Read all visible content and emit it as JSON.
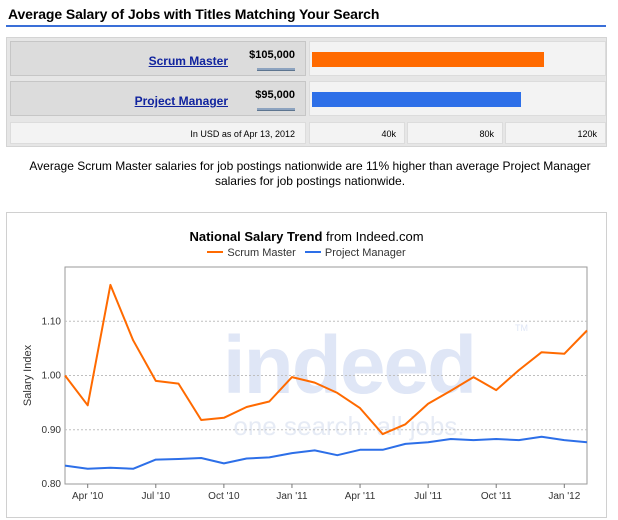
{
  "heading": "Average Salary of Jobs with Titles Matching Your Search",
  "salary_bars": {
    "jobs": [
      {
        "title": "Scrum Master",
        "amount_label": "$105,000",
        "value": 105000,
        "color": "#ff6a00"
      },
      {
        "title": "Project Manager",
        "amount_label": "$95,000",
        "value": 95000,
        "color": "#2d6fe8"
      }
    ],
    "footnote": "In USD as of Apr 13, 2012",
    "axis_ticks": [
      "40k",
      "80k",
      "120k"
    ],
    "axis_values": [
      40000,
      80000,
      120000
    ]
  },
  "summary": "Average Scrum Master salaries for job postings nationwide are 11% higher than average Project Manager salaries for job postings nationwide.",
  "trend": {
    "title_bold": "National Salary Trend",
    "title_rest": " from Indeed.com",
    "watermark_logo": "indeed",
    "watermark_tagline": "one search. all jobs.",
    "watermark_tm": "TM"
  },
  "chart_data": {
    "type": "line",
    "title": "National Salary Trend from Indeed.com",
    "ylabel": "Salary Index",
    "xlabel": "",
    "ylim": [
      0.8,
      1.2
    ],
    "yticks": [
      0.8,
      0.9,
      1.0,
      1.1
    ],
    "ytick_labels": [
      "0.80",
      "0.90",
      "1.00",
      "1.10"
    ],
    "xtick_labels": [
      "Apr '10",
      "Jul '10",
      "Oct '10",
      "Jan '11",
      "Apr '11",
      "Jul '11",
      "Oct '11",
      "Jan '12"
    ],
    "xtick_index": [
      1,
      4,
      7,
      10,
      13,
      16,
      19,
      22
    ],
    "x": [
      "Mar '10",
      "Apr '10",
      "May '10",
      "Jun '10",
      "Jul '10",
      "Aug '10",
      "Sep '10",
      "Oct '10",
      "Nov '10",
      "Dec '10",
      "Jan '11",
      "Feb '11",
      "Mar '11",
      "Apr '11",
      "May '11",
      "Jun '11",
      "Jul '11",
      "Aug '11",
      "Sep '11",
      "Oct '11",
      "Nov '11",
      "Dec '11",
      "Jan '12",
      "Feb '12"
    ],
    "grid": true,
    "legend_position": "top",
    "series": [
      {
        "name": "Scrum Master",
        "color": "#ff6a00",
        "values": [
          1.0,
          0.945,
          1.167,
          1.065,
          0.99,
          0.985,
          0.918,
          0.922,
          0.942,
          0.952,
          0.997,
          0.987,
          0.968,
          0.94,
          0.892,
          0.91,
          0.948,
          0.972,
          0.997,
          0.973,
          1.01,
          1.043,
          1.04,
          1.083
        ]
      },
      {
        "name": "Project Manager",
        "color": "#2d6fe8",
        "values": [
          0.834,
          0.828,
          0.83,
          0.828,
          0.845,
          0.846,
          0.848,
          0.838,
          0.847,
          0.849,
          0.857,
          0.862,
          0.853,
          0.863,
          0.863,
          0.874,
          0.877,
          0.883,
          0.881,
          0.883,
          0.881,
          0.887,
          0.881,
          0.877
        ]
      }
    ]
  }
}
